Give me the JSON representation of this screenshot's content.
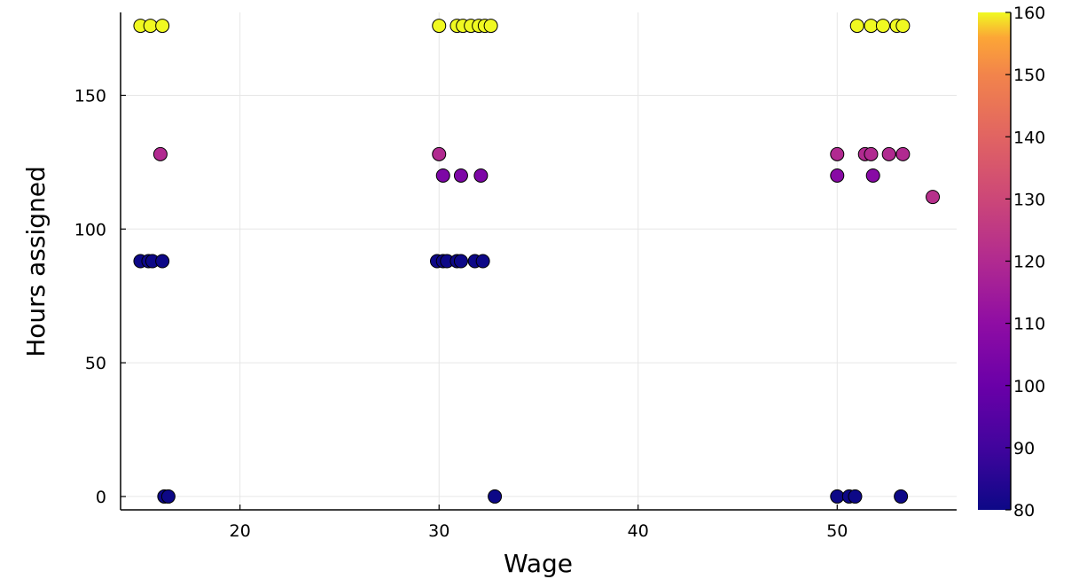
{
  "chart_data": {
    "type": "scatter",
    "title": "",
    "xlabel": "Wage",
    "ylabel": "Hours assigned",
    "xlim": [
      14,
      56
    ],
    "ylim": [
      -5,
      181
    ],
    "xticks": [
      20,
      30,
      40,
      50
    ],
    "yticks": [
      0,
      50,
      100,
      150
    ],
    "grid": true,
    "colorbar": {
      "min": 80,
      "max": 160,
      "ticks": [
        80,
        90,
        100,
        110,
        120,
        130,
        140,
        150,
        160
      ],
      "colormap": "plasma"
    },
    "points": [
      {
        "x": 15.0,
        "y": 176,
        "c": 160
      },
      {
        "x": 15.5,
        "y": 176,
        "c": 160
      },
      {
        "x": 16.1,
        "y": 176,
        "c": 160
      },
      {
        "x": 16.0,
        "y": 128,
        "c": 120
      },
      {
        "x": 15.0,
        "y": 88,
        "c": 80
      },
      {
        "x": 15.4,
        "y": 88,
        "c": 80
      },
      {
        "x": 15.6,
        "y": 88,
        "c": 80
      },
      {
        "x": 16.1,
        "y": 88,
        "c": 80
      },
      {
        "x": 16.2,
        "y": 0,
        "c": 80
      },
      {
        "x": 16.4,
        "y": 0,
        "c": 80
      },
      {
        "x": 30.0,
        "y": 176,
        "c": 160
      },
      {
        "x": 30.9,
        "y": 176,
        "c": 160
      },
      {
        "x": 31.2,
        "y": 176,
        "c": 160
      },
      {
        "x": 31.6,
        "y": 176,
        "c": 160
      },
      {
        "x": 32.0,
        "y": 176,
        "c": 160
      },
      {
        "x": 32.3,
        "y": 176,
        "c": 160
      },
      {
        "x": 32.6,
        "y": 176,
        "c": 160
      },
      {
        "x": 30.0,
        "y": 128,
        "c": 120
      },
      {
        "x": 30.2,
        "y": 120,
        "c": 105
      },
      {
        "x": 31.1,
        "y": 120,
        "c": 105
      },
      {
        "x": 32.1,
        "y": 120,
        "c": 105
      },
      {
        "x": 29.9,
        "y": 88,
        "c": 80
      },
      {
        "x": 30.2,
        "y": 88,
        "c": 80
      },
      {
        "x": 30.4,
        "y": 88,
        "c": 80
      },
      {
        "x": 30.9,
        "y": 88,
        "c": 80
      },
      {
        "x": 31.1,
        "y": 88,
        "c": 80
      },
      {
        "x": 31.8,
        "y": 88,
        "c": 80
      },
      {
        "x": 32.2,
        "y": 88,
        "c": 80
      },
      {
        "x": 32.8,
        "y": 0,
        "c": 80
      },
      {
        "x": 51.0,
        "y": 176,
        "c": 160
      },
      {
        "x": 51.7,
        "y": 176,
        "c": 160
      },
      {
        "x": 52.3,
        "y": 176,
        "c": 160
      },
      {
        "x": 53.0,
        "y": 176,
        "c": 160
      },
      {
        "x": 53.3,
        "y": 176,
        "c": 160
      },
      {
        "x": 50.0,
        "y": 128,
        "c": 120
      },
      {
        "x": 51.4,
        "y": 128,
        "c": 120
      },
      {
        "x": 51.7,
        "y": 128,
        "c": 120
      },
      {
        "x": 52.6,
        "y": 128,
        "c": 120
      },
      {
        "x": 53.3,
        "y": 128,
        "c": 120
      },
      {
        "x": 50.0,
        "y": 120,
        "c": 108
      },
      {
        "x": 51.8,
        "y": 120,
        "c": 108
      },
      {
        "x": 54.8,
        "y": 112,
        "c": 122
      },
      {
        "x": 50.0,
        "y": 0,
        "c": 80
      },
      {
        "x": 50.6,
        "y": 0,
        "c": 80
      },
      {
        "x": 50.9,
        "y": 0,
        "c": 80
      },
      {
        "x": 53.2,
        "y": 0,
        "c": 80
      }
    ]
  }
}
